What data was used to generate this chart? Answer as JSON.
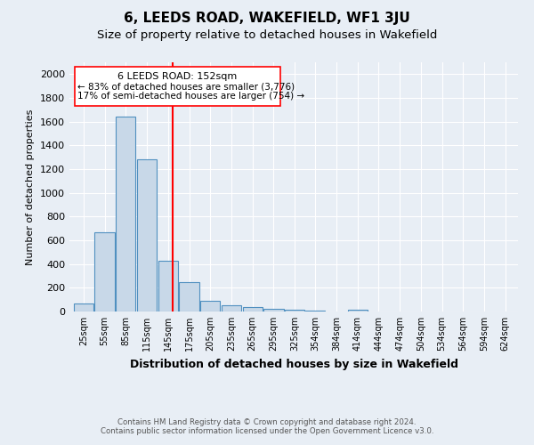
{
  "title": "6, LEEDS ROAD, WAKEFIELD, WF1 3JU",
  "subtitle": "Size of property relative to detached houses in Wakefield",
  "xlabel": "Distribution of detached houses by size in Wakefield",
  "ylabel": "Number of detached properties",
  "footnote1": "Contains HM Land Registry data © Crown copyright and database right 2024.",
  "footnote2": "Contains public sector information licensed under the Open Government Licence v3.0.",
  "annotation_title": "6 LEEDS ROAD: 152sqm",
  "annotation_line1": "← 83% of detached houses are smaller (3,776)",
  "annotation_line2": "17% of semi-detached houses are larger (754) →",
  "bar_color": "#c8d8e8",
  "bar_edge_color": "#5090c0",
  "red_line_x": 152,
  "categories": [
    25,
    55,
    85,
    115,
    145,
    175,
    205,
    235,
    265,
    295,
    325,
    354,
    384,
    414,
    444,
    474,
    504,
    534,
    564,
    594,
    624
  ],
  "values": [
    70,
    670,
    1640,
    1280,
    430,
    250,
    90,
    55,
    35,
    20,
    15,
    10,
    0,
    15,
    0,
    0,
    0,
    0,
    0,
    0,
    0
  ],
  "ylim": [
    0,
    2100
  ],
  "yticks": [
    0,
    200,
    400,
    600,
    800,
    1000,
    1200,
    1400,
    1600,
    1800,
    2000
  ],
  "background_color": "#e8eef5",
  "plot_bg_color": "#e8eef5",
  "grid_color": "#ffffff",
  "title_fontsize": 11,
  "subtitle_fontsize": 9.5
}
